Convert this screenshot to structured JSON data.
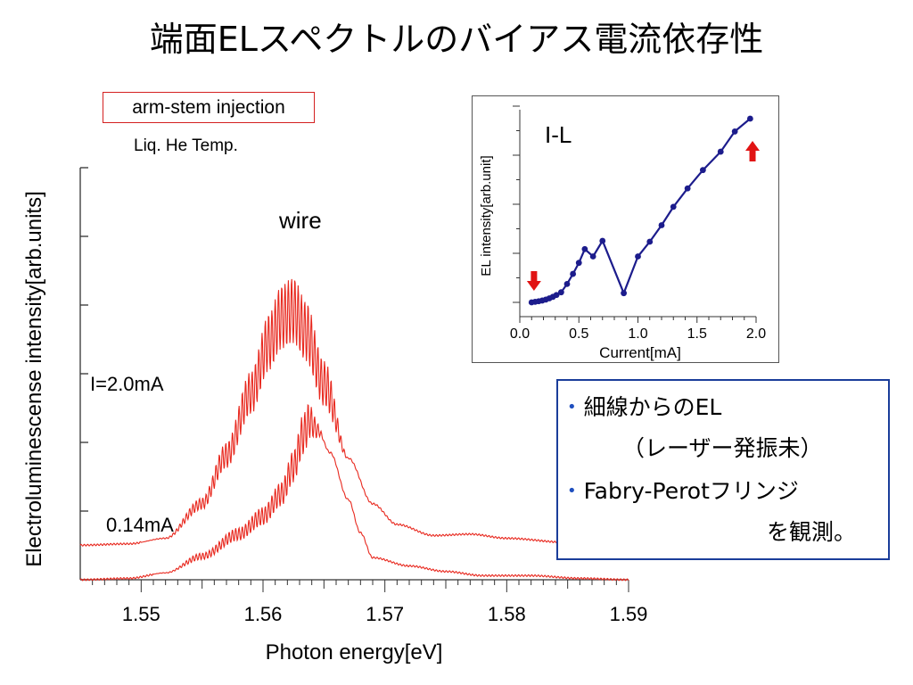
{
  "title": "端面ELスペクトルのバイアス電流依存性",
  "condition_box": "arm-stem injection",
  "temperature": "Liq. He Temp.",
  "wire_label": "wire",
  "curve_labels": {
    "high": "I=2.0mA",
    "low": "0.14mA"
  },
  "notes": {
    "item1_line1": "細線からのEL",
    "item1_line2": "（レーザー発振未）",
    "item2_line1": "Fabry-Perotフリンジ",
    "item2_line2": "を観測。"
  },
  "colors": {
    "spectrum": "#e8281e",
    "inset_line": "#1c1c8c",
    "arrow": "#e11414",
    "notes_border": "#1a3d9a",
    "condition_border": "#d42020"
  },
  "chart_data": [
    {
      "type": "line",
      "xlabel": "Photon energy[eV]",
      "ylabel": "Electroluminescense intensity[arb.units]",
      "xlim": [
        1.545,
        1.59
      ],
      "x_ticks": [
        "1.55",
        "1.56",
        "1.57",
        "1.58",
        "1.59"
      ],
      "y_tick_count": 7,
      "grid": false,
      "series": [
        {
          "name": "I=2.0mA",
          "offset": 0.25,
          "envelope": [
            [
              1.545,
              0.25
            ],
            [
              1.549,
              0.26
            ],
            [
              1.552,
              0.3
            ],
            [
              1.555,
              0.55
            ],
            [
              1.557,
              0.9
            ],
            [
              1.559,
              1.35
            ],
            [
              1.5605,
              1.72
            ],
            [
              1.5615,
              1.9
            ],
            [
              1.5625,
              1.95
            ],
            [
              1.5635,
              1.8
            ],
            [
              1.565,
              1.42
            ],
            [
              1.567,
              0.88
            ],
            [
              1.569,
              0.55
            ],
            [
              1.571,
              0.4
            ],
            [
              1.574,
              0.32
            ],
            [
              1.577,
              0.33
            ],
            [
              1.58,
              0.3
            ],
            [
              1.585,
              0.27
            ],
            [
              1.59,
              0.26
            ]
          ],
          "fringe_range": [
            1.55,
            1.567
          ]
        },
        {
          "name": "0.14mA",
          "offset": 0.0,
          "envelope": [
            [
              1.545,
              0.0
            ],
            [
              1.549,
              0.01
            ],
            [
              1.552,
              0.05
            ],
            [
              1.555,
              0.17
            ],
            [
              1.558,
              0.33
            ],
            [
              1.56,
              0.46
            ],
            [
              1.5615,
              0.62
            ],
            [
              1.5625,
              0.82
            ],
            [
              1.5633,
              1.05
            ],
            [
              1.5638,
              1.15
            ],
            [
              1.5645,
              1.08
            ],
            [
              1.5655,
              0.92
            ],
            [
              1.567,
              0.58
            ],
            [
              1.568,
              0.34
            ],
            [
              1.569,
              0.16
            ],
            [
              1.572,
              0.1
            ],
            [
              1.575,
              0.06
            ],
            [
              1.578,
              0.03
            ],
            [
              1.582,
              0.03
            ],
            [
              1.586,
              0.01
            ],
            [
              1.59,
              0.0
            ]
          ],
          "fringe_range": [
            1.551,
            1.565
          ]
        }
      ]
    },
    {
      "type": "line",
      "title": "I-L",
      "xlabel": "Current[mA]",
      "ylabel": "EL intensity[arb.unit]",
      "xlim": [
        0.0,
        2.0
      ],
      "x_ticks": [
        "0.0",
        "0.5",
        "1.0",
        "1.5",
        "2.0"
      ],
      "ylim": [
        0,
        1
      ],
      "grid": false,
      "series": [
        {
          "name": "I-L",
          "x": [
            0.1,
            0.13,
            0.16,
            0.19,
            0.22,
            0.25,
            0.28,
            0.31,
            0.35,
            0.4,
            0.45,
            0.5,
            0.55,
            0.62,
            0.7,
            0.88,
            1.0,
            1.1,
            1.2,
            1.3,
            1.42,
            1.55,
            1.7,
            1.82,
            1.95
          ],
          "y": [
            0.0,
            0.003,
            0.006,
            0.01,
            0.015,
            0.022,
            0.03,
            0.04,
            0.055,
            0.1,
            0.155,
            0.215,
            0.29,
            0.25,
            0.335,
            0.05,
            0.25,
            0.33,
            0.42,
            0.52,
            0.62,
            0.72,
            0.82,
            0.93,
            1.0
          ]
        }
      ],
      "annotations": [
        "arrow-down near 0.1 mA",
        "arrow-up near 1.95 mA"
      ]
    }
  ]
}
